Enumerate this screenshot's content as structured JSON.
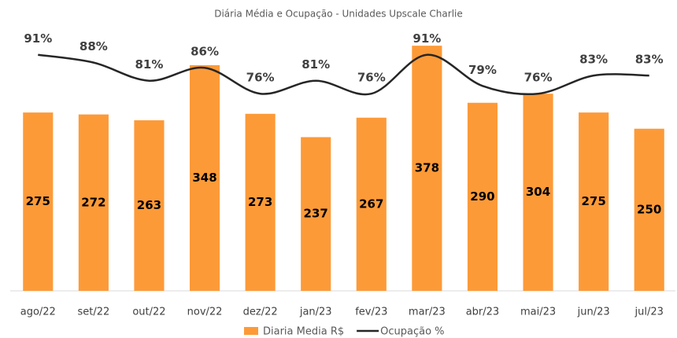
{
  "chart_data": {
    "type": "bar+line",
    "title": "Diária Média e Ocupação -  Unidades Upscale Charlie",
    "categories": [
      "ago/22",
      "set/22",
      "out/22",
      "nov/22",
      "dez/22",
      "jan/23",
      "fev/23",
      "mar/23",
      "abr/23",
      "mai/23",
      "jun/23",
      "jul/23"
    ],
    "series": [
      {
        "name": "Diaria Media  R$",
        "color": "#fd9a38",
        "type": "bar",
        "values": [
          275,
          272,
          263,
          348,
          273,
          237,
          267,
          378,
          290,
          304,
          275,
          250
        ]
      },
      {
        "name": "Ocupação %",
        "color": "#262626",
        "type": "line",
        "axis": "y2",
        "values": [
          91,
          88,
          81,
          86,
          76,
          81,
          76,
          91,
          79,
          76,
          83,
          83
        ],
        "value_labels": [
          "91%",
          "88%",
          "81%",
          "86%",
          "76%",
          "81%",
          "76%",
          "91%",
          "79%",
          "76%",
          "83%",
          "83%"
        ]
      }
    ],
    "ylim": [
      0,
      400
    ],
    "y2lim": [
      0,
      100
    ],
    "legend": "bottom"
  }
}
